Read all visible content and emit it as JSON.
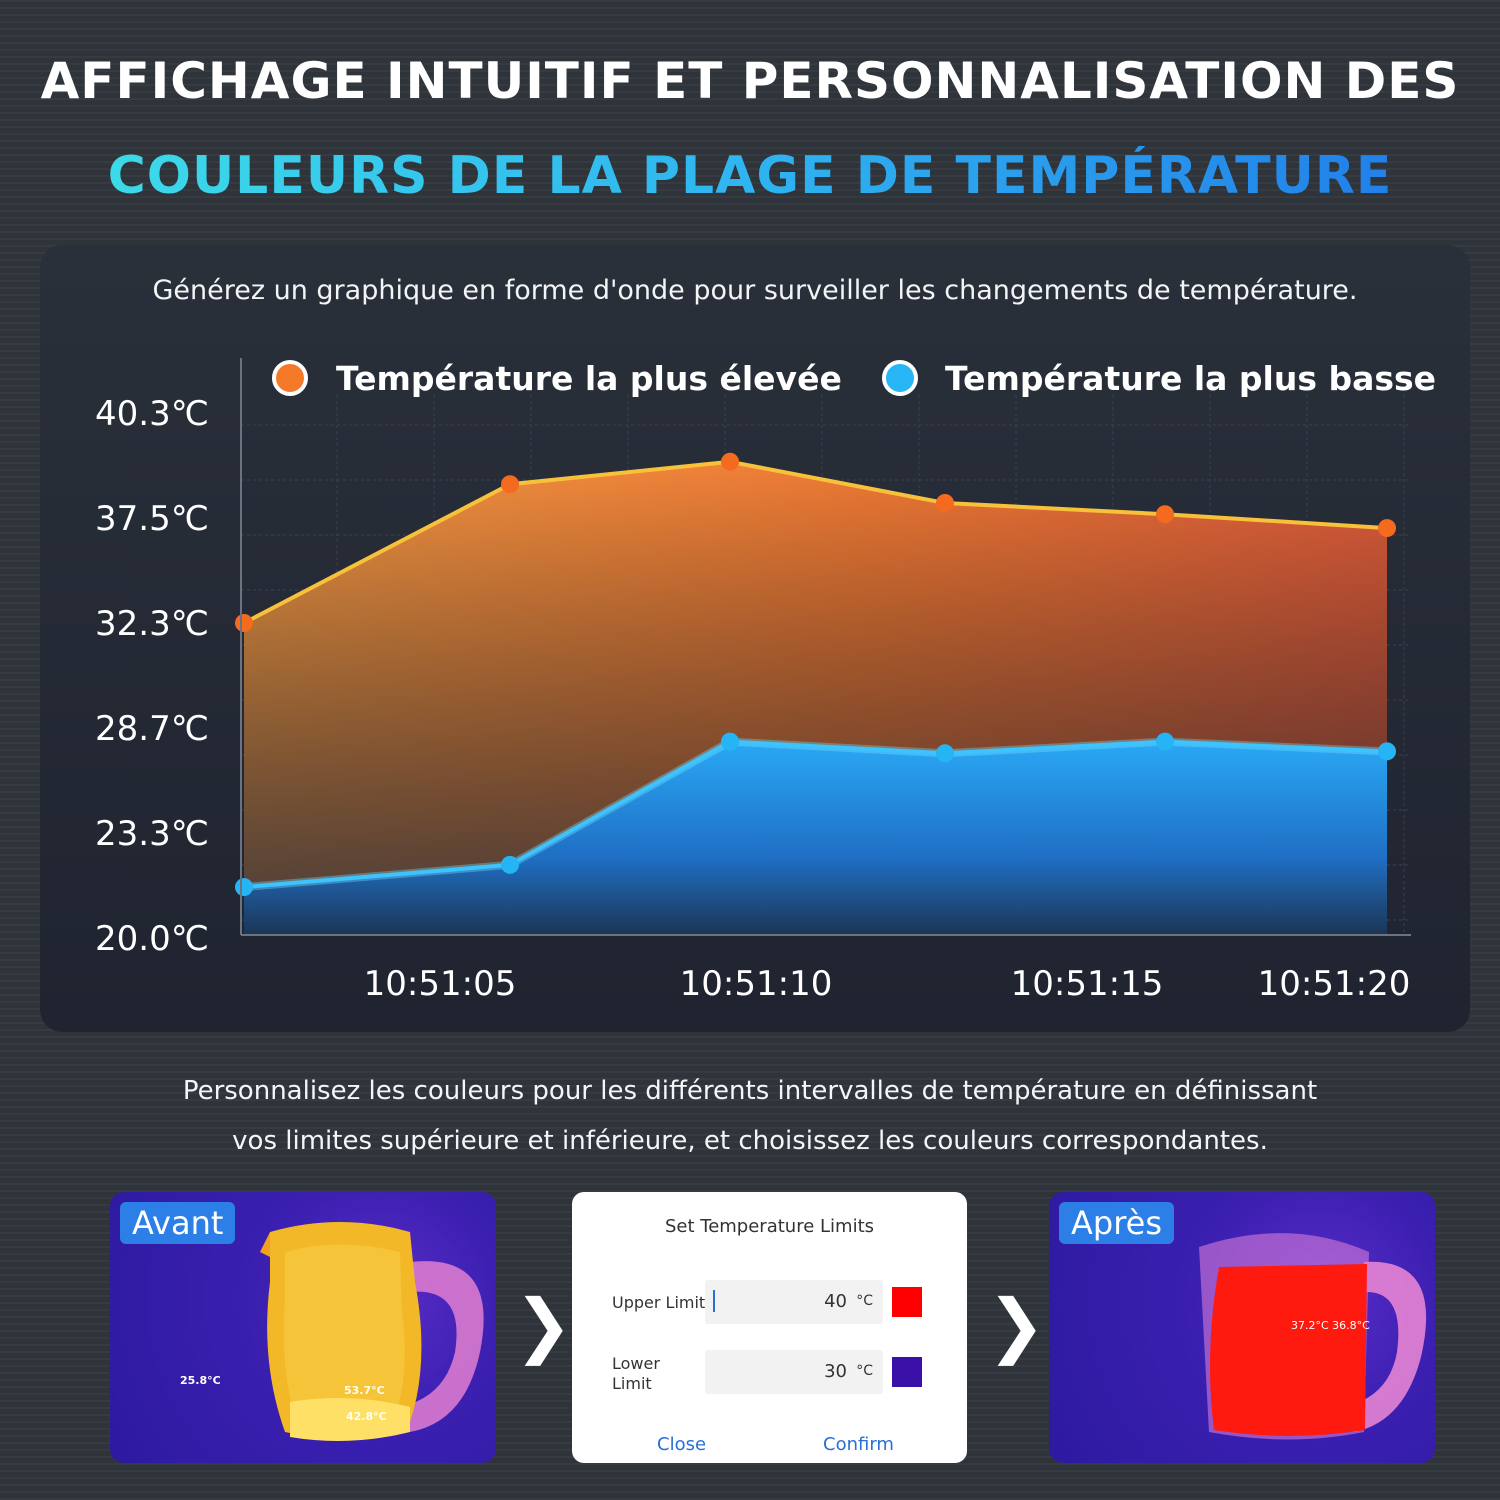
{
  "header": {
    "title_line1": "AFFICHAGE INTUITIF ET PERSONNALISATION DES",
    "title_line2": "COULEURS DE LA PLAGE DE TEMPÉRATURE"
  },
  "chart_caption": "Générez un graphique en forme d'onde pour surveiller les changements de température.",
  "chart_data": {
    "type": "area",
    "title": "",
    "xlabel": "",
    "ylabel": "",
    "legend_position": "top",
    "ytick_labels": [
      "40.3℃",
      "37.5℃",
      "32.3℃",
      "28.7℃",
      "23.3℃",
      "20.0℃"
    ],
    "xtick_labels": [
      "10:51:05",
      "10:51:10",
      "10:51:15",
      "10:51:20"
    ],
    "series": [
      {
        "name": "Température la plus élevée",
        "color": "#f4762a",
        "values": [
          32.3,
          38.4,
          39.0,
          37.9,
          37.6,
          37.0
        ]
      },
      {
        "name": "Température la plus basse",
        "color": "#29b6f6",
        "values": [
          21.6,
          22.3,
          28.0,
          27.4,
          28.0,
          27.5
        ]
      }
    ],
    "grid": true
  },
  "bottom_text": {
    "line1": "Personnalisez les couleurs pour les différents intervalles de température en définissant",
    "line2": "vos limites supérieure et inférieure, et choisissez les couleurs correspondantes."
  },
  "before_panel": {
    "badge": "Avant",
    "temp_bg": "25.8°C",
    "temp_max": "53.7°C",
    "temp_min": "42.8°C"
  },
  "after_panel": {
    "badge": "Après",
    "temp_readout": "37.2°C 36.8°C"
  },
  "dialog": {
    "title": "Set Temperature Limits",
    "upper_label": "Upper Limit",
    "upper_value": "40",
    "upper_unit": "°C",
    "upper_color": "#ff0000",
    "lower_label": "Lower\nLimit",
    "lower_value": "30",
    "lower_unit": "°C",
    "lower_color": "#3a10a8",
    "close_label": "Close",
    "confirm_label": "Confirm"
  },
  "arrow_glyph": "❯"
}
